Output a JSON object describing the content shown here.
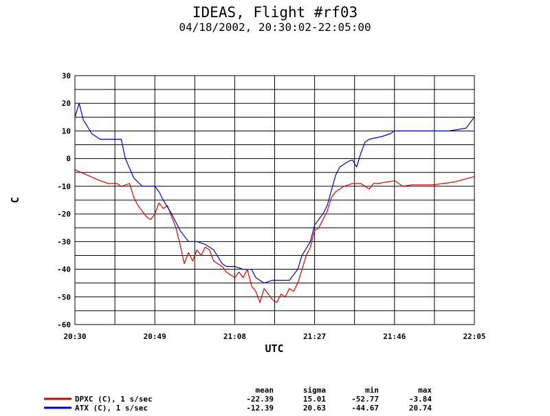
{
  "chart_data": {
    "type": "line",
    "title": "IDEAS, Flight #rf03",
    "subtitle": "04/18/2002, 20:30:02-22:05:00",
    "xlabel": "UTC",
    "ylabel": "C",
    "xlim": [
      "20:30",
      "22:05"
    ],
    "ylim": [
      -60,
      30
    ],
    "xticks": [
      "20:30",
      "20:49",
      "21:08",
      "21:27",
      "21:46",
      "22:05"
    ],
    "yticks": [
      -60,
      -50,
      -40,
      -30,
      -20,
      -10,
      0,
      10,
      20,
      30
    ],
    "grid": true,
    "legend_position": "bottom-left",
    "stats_headers": [
      "mean",
      "sigma",
      "min",
      "max"
    ],
    "series": [
      {
        "name": "DPXC (C), 1 s/sec",
        "color": "#dd0000",
        "stats": [
          "-22.39",
          "15.01",
          "-52.77",
          "-3.84"
        ],
        "x": [
          "20:30",
          "20:33",
          "20:36",
          "20:38",
          "20:40",
          "20:41",
          "20:43",
          "20:44",
          "20:45",
          "20:46",
          "20:47",
          "20:48",
          "20:49",
          "20:50",
          "20:51",
          "20:52",
          "20:53",
          "20:54",
          "20:55",
          "20:56",
          "20:57",
          "20:58",
          "20:59",
          "21:00",
          "21:01",
          "21:02",
          "21:03",
          "21:04",
          "21:05",
          "21:06",
          "21:08",
          "21:09",
          "21:10",
          "21:11",
          "21:12",
          "21:13",
          "21:14",
          "21:15",
          "21:16",
          "21:17",
          "21:18",
          "21:19",
          "21:20",
          "21:21",
          "21:22",
          "21:23",
          "21:24",
          "21:25",
          "21:26",
          "21:27",
          "21:28",
          "21:29",
          "21:30",
          "21:31",
          "21:32",
          "21:34",
          "21:36",
          "21:38",
          "21:40",
          "21:41",
          "21:42",
          "21:46",
          "21:48",
          "21:50",
          "21:55",
          "22:00",
          "22:05"
        ],
        "y": [
          -4,
          -6,
          -8,
          -9,
          -9,
          -10,
          -9,
          -14,
          -17,
          -19,
          -21,
          -22,
          -20,
          -16,
          -18,
          -17,
          -21,
          -25,
          -31,
          -38,
          -34,
          -37,
          -33,
          -35,
          -32,
          -33,
          -37,
          -38,
          -39,
          -41,
          -43,
          -41,
          -43,
          -40,
          -46,
          -48,
          -52,
          -47,
          -49,
          -51,
          -52,
          -49,
          -50,
          -47,
          -48,
          -45,
          -40,
          -35,
          -32,
          -26,
          -25,
          -22,
          -19,
          -14,
          -12,
          -10,
          -9,
          -9,
          -11,
          -9,
          -9,
          -8,
          -10,
          -9.5,
          -9.5,
          -8.5,
          -6.5
        ]
      },
      {
        "name": "ATX (C), 1 s/sec",
        "color": "#0000cc",
        "stats": [
          "-12.39",
          "20.63",
          "-44.67",
          "20.74"
        ],
        "x": [
          "20:30",
          "20:31",
          "20:32",
          "20:34",
          "20:36",
          "20:39",
          "20:41",
          "20:42",
          "20:44",
          "20:46",
          "20:47",
          "20:49",
          "20:50",
          "20:51",
          "20:53",
          "20:55",
          "20:57",
          "20:59",
          "21:01",
          "21:03",
          "21:05",
          "21:06",
          "21:08",
          "21:10",
          "21:12",
          "21:13",
          "21:15",
          "21:17",
          "21:19",
          "21:21",
          "21:23",
          "21:24",
          "21:26",
          "21:27",
          "21:29",
          "21:30",
          "21:32",
          "21:33",
          "21:34",
          "21:35",
          "21:36",
          "21:37",
          "21:38",
          "21:39",
          "21:40",
          "21:43",
          "21:45",
          "21:46",
          "21:49",
          "21:54",
          "21:59",
          "22:03",
          "22:05"
        ],
        "y": [
          15,
          20,
          14,
          9,
          7,
          7,
          7,
          0,
          -7,
          -10,
          -10,
          -10,
          -12,
          -15,
          -20,
          -26,
          -30,
          -30,
          -31,
          -33,
          -38,
          -39,
          -39,
          -40,
          -40,
          -43,
          -45,
          -44,
          -44,
          -44,
          -40,
          -35,
          -30,
          -24,
          -20,
          -17,
          -6,
          -3,
          -2,
          -1,
          -0.5,
          -3,
          2,
          6,
          7,
          8,
          9,
          10,
          10,
          10,
          10,
          11,
          15
        ]
      }
    ]
  }
}
